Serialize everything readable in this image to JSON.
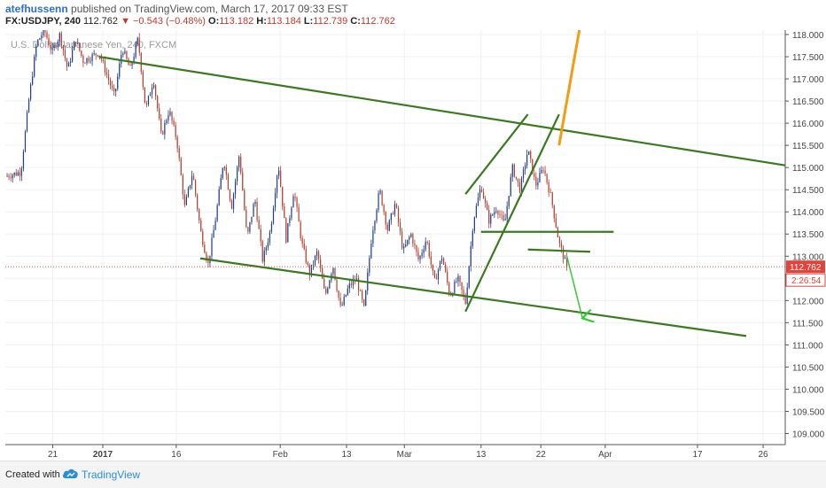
{
  "header": {
    "author": "atefhussenn",
    "published_text": "published on TradingView.com, March 17, 2017 09:33 EST",
    "symbol": "FX:USDJPY, 240",
    "last": "112.762",
    "change": "▼ −0.543 (−0.48%)",
    "open_label": "O:",
    "open": "113.182",
    "high_label": "H:",
    "high": "113.184",
    "low_label": "L:",
    "low": "112.739",
    "close_label": "C:",
    "close": "112.762"
  },
  "footer": {
    "created_with": "Created with",
    "brand": "TradingView"
  },
  "colors": {
    "up": "#1f3f8a",
    "down": "#b5402f",
    "trend": "#3a7a1e",
    "arrow_up": "#f39c12",
    "arrow_down": "#33cc33",
    "price_tag": "#e0443a"
  },
  "chart_data": {
    "type": "candlestick",
    "watermark": "U.S. Dollar/Japanese Yen, 240, FXCM",
    "y_ticks": [
      "118.000",
      "117.500",
      "117.000",
      "116.500",
      "116.000",
      "115.500",
      "115.000",
      "114.500",
      "114.000",
      "113.500",
      "113.000",
      "112.500",
      "112.000",
      "111.500",
      "111.000",
      "110.500",
      "110.000",
      "109.500",
      "109.000"
    ],
    "ylim": [
      108.75,
      118.1
    ],
    "x_ticks": [
      "21",
      "2017",
      "16",
      "Feb",
      "13",
      "Mar",
      "13",
      "22",
      "Apr",
      "17",
      "26"
    ],
    "last_price_label": "112.762",
    "countdown_label": "2:26:54",
    "last_price": 112.762,
    "price_path": [
      [
        0,
        114.8
      ],
      [
        2,
        114.9
      ],
      [
        3,
        116.5
      ],
      [
        4,
        117.8
      ],
      [
        5,
        118.1
      ],
      [
        6,
        117.6
      ],
      [
        7,
        118.0
      ],
      [
        8,
        117.2
      ],
      [
        9,
        117.9
      ],
      [
        10,
        117.4
      ],
      [
        12,
        117.6
      ],
      [
        13,
        117.1
      ],
      [
        14,
        116.6
      ],
      [
        15,
        117.7
      ],
      [
        16,
        117.2
      ],
      [
        17,
        117.9
      ],
      [
        18,
        116.3
      ],
      [
        19,
        117.0
      ],
      [
        20,
        115.7
      ],
      [
        21,
        116.3
      ],
      [
        22,
        115.6
      ],
      [
        23,
        114.1
      ],
      [
        24,
        114.9
      ],
      [
        25,
        113.6
      ],
      [
        26,
        112.8
      ],
      [
        27,
        113.9
      ],
      [
        28,
        115.2
      ],
      [
        29,
        114.1
      ],
      [
        30,
        115.3
      ],
      [
        31,
        113.4
      ],
      [
        32,
        114.3
      ],
      [
        33,
        112.9
      ],
      [
        34,
        113.6
      ],
      [
        35,
        115.1
      ],
      [
        36,
        113.4
      ],
      [
        37,
        114.5
      ],
      [
        38,
        113.3
      ],
      [
        39,
        112.6
      ],
      [
        40,
        113.1
      ],
      [
        41,
        112.1
      ],
      [
        42,
        112.8
      ],
      [
        43,
        111.8
      ],
      [
        44,
        112.3
      ],
      [
        45,
        112.5
      ],
      [
        46,
        111.8
      ],
      [
        47,
        113.5
      ],
      [
        48,
        114.5
      ],
      [
        49,
        113.6
      ],
      [
        50,
        114.2
      ],
      [
        51,
        113.1
      ],
      [
        52,
        113.5
      ],
      [
        53,
        112.9
      ],
      [
        54,
        113.4
      ],
      [
        55,
        112.4
      ],
      [
        56,
        113.0
      ],
      [
        57,
        112.1
      ],
      [
        58,
        112.5
      ],
      [
        59,
        111.95
      ],
      [
        60,
        113.8
      ],
      [
        61,
        114.6
      ],
      [
        62,
        113.8
      ],
      [
        63,
        114.1
      ],
      [
        64,
        113.7
      ],
      [
        65,
        115.0
      ],
      [
        66,
        114.5
      ],
      [
        67,
        115.4
      ],
      [
        68,
        114.6
      ],
      [
        69,
        115.0
      ],
      [
        70,
        114.3
      ],
      [
        71,
        113.3
      ],
      [
        72,
        112.76
      ]
    ],
    "trendlines": [
      {
        "from": [
          12,
          117.5
        ],
        "to": [
          100,
          115.05
        ]
      },
      {
        "from": [
          25,
          112.95
        ],
        "to": [
          95,
          111.2
        ]
      },
      {
        "from": [
          59,
          111.75
        ],
        "to": [
          71,
          116.2
        ]
      },
      {
        "from": [
          59,
          114.4
        ],
        "to": [
          67,
          116.2
        ]
      },
      {
        "from": [
          61,
          113.55
        ],
        "to": [
          78,
          113.55
        ]
      },
      {
        "from": [
          67,
          113.15
        ],
        "to": [
          75,
          113.1
        ]
      }
    ],
    "arrows": [
      {
        "from": [
          71,
          115.5
        ],
        "to": [
          74,
          118.5
        ]
      },
      {
        "from": [
          72,
          113.0
        ],
        "to": [
          74,
          111.6
        ]
      }
    ]
  }
}
